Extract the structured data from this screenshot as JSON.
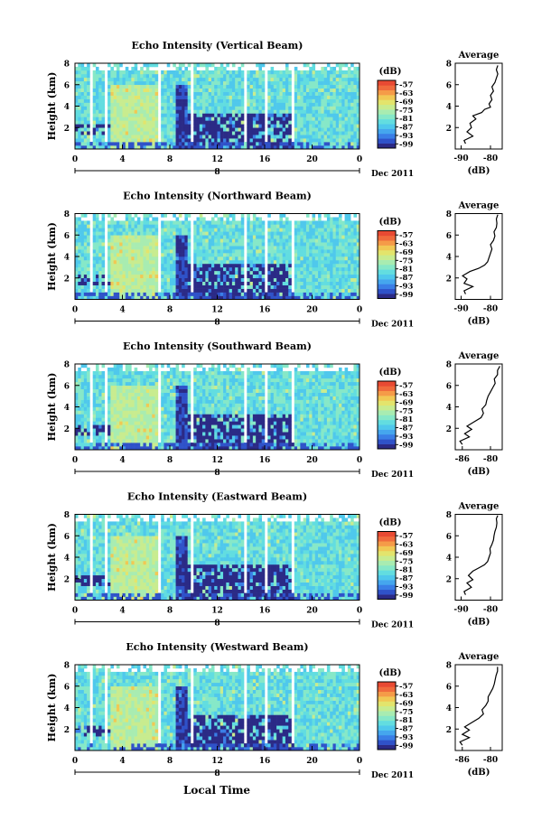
{
  "chart_data": {
    "type": "heatmap",
    "common": {
      "xlabel": "Local Time",
      "date_label": "Dec 2011",
      "day_label": "8",
      "x_ticks": [
        "0",
        "4",
        "8",
        "12",
        "16",
        "20",
        "0"
      ],
      "y_ticks": [
        "2",
        "4",
        "6",
        "8"
      ],
      "ylabel": "Height (km)",
      "xlim": [
        0,
        24
      ],
      "ylim": [
        0,
        8
      ],
      "colorbar": {
        "unit": "(dB)",
        "ticks": [
          "-57",
          "-63",
          "-69",
          "-75",
          "-81",
          "-87",
          "-93",
          "-99"
        ],
        "range": [
          -102,
          -54
        ],
        "colors": [
          "#2b2a86",
          "#2f52c9",
          "#3a7ee6",
          "#45a6ee",
          "#4fc8ec",
          "#62dde0",
          "#86e8c8",
          "#a8ecb1",
          "#c8ec8f",
          "#e3e46c",
          "#f1c854",
          "#f59b48",
          "#f06b3d",
          "#e84a33"
        ]
      },
      "avg_title": "Average",
      "avg_xlabel": "(dB)",
      "avg_y_ticks": [
        "2",
        "4",
        "6",
        "8"
      ],
      "avg_ylim": [
        0,
        8
      ]
    },
    "panels": [
      {
        "title": "Echo Intensity (Vertical Beam)",
        "avg_xticks": [
          "-90",
          "-80"
        ],
        "avg_xlim": [
          -92,
          -76
        ],
        "avg_profile": [
          [
            -88.5,
            0.5
          ],
          [
            -89,
            0.8
          ],
          [
            -86,
            1.2
          ],
          [
            -88,
            1.6
          ],
          [
            -86.5,
            2.0
          ],
          [
            -87,
            2.4
          ],
          [
            -85,
            2.8
          ],
          [
            -86,
            3.1
          ],
          [
            -83,
            3.4
          ],
          [
            -82,
            3.7
          ],
          [
            -80,
            3.9
          ],
          [
            -80.5,
            4.2
          ],
          [
            -79.5,
            4.6
          ],
          [
            -80,
            5.0
          ],
          [
            -79,
            5.4
          ],
          [
            -79.5,
            5.8
          ],
          [
            -78.5,
            6.2
          ],
          [
            -78,
            6.6
          ],
          [
            -77.5,
            7.0
          ],
          [
            -78,
            7.4
          ],
          [
            -77.5,
            7.8
          ]
        ]
      },
      {
        "title": "Echo Intensity (Northward Beam)",
        "avg_xticks": [
          "-90",
          "-80"
        ],
        "avg_xlim": [
          -92,
          -76
        ],
        "avg_profile": [
          [
            -88.5,
            0.5
          ],
          [
            -89,
            0.8
          ],
          [
            -86,
            1.2
          ],
          [
            -89,
            1.5
          ],
          [
            -88,
            1.9
          ],
          [
            -89.5,
            2.2
          ],
          [
            -87,
            2.6
          ],
          [
            -84,
            2.9
          ],
          [
            -82,
            3.2
          ],
          [
            -81,
            3.5
          ],
          [
            -80.5,
            3.9
          ],
          [
            -80,
            4.3
          ],
          [
            -79.5,
            4.7
          ],
          [
            -80,
            5.1
          ],
          [
            -79,
            5.5
          ],
          [
            -78.5,
            5.9
          ],
          [
            -78.8,
            6.3
          ],
          [
            -78,
            6.7
          ],
          [
            -77.8,
            7.1
          ],
          [
            -78,
            7.5
          ],
          [
            -77.5,
            7.9
          ]
        ]
      },
      {
        "title": "Echo Intensity (Southward Beam)",
        "avg_xticks": [
          "-86",
          "-80"
        ],
        "avg_xlim": [
          -87.5,
          -77.5
        ],
        "avg_profile": [
          [
            -86,
            0.5
          ],
          [
            -86.5,
            0.8
          ],
          [
            -84.5,
            1.2
          ],
          [
            -85.5,
            1.5
          ],
          [
            -84,
            1.9
          ],
          [
            -85,
            2.2
          ],
          [
            -83.5,
            2.6
          ],
          [
            -82,
            3.0
          ],
          [
            -81.5,
            3.4
          ],
          [
            -81.8,
            3.8
          ],
          [
            -81,
            4.2
          ],
          [
            -80.8,
            4.6
          ],
          [
            -80.5,
            5.0
          ],
          [
            -80,
            5.4
          ],
          [
            -79.5,
            5.8
          ],
          [
            -79,
            6.2
          ],
          [
            -79.2,
            6.6
          ],
          [
            -78.5,
            7.0
          ],
          [
            -78.5,
            7.4
          ],
          [
            -78,
            7.8
          ]
        ]
      },
      {
        "title": "Echo Intensity (Eastward Beam)",
        "avg_xticks": [
          "-90",
          "-80"
        ],
        "avg_xlim": [
          -92,
          -76
        ],
        "avg_profile": [
          [
            -88.5,
            0.5
          ],
          [
            -89,
            0.8
          ],
          [
            -86.5,
            1.2
          ],
          [
            -88,
            1.6
          ],
          [
            -86,
            1.9
          ],
          [
            -87.5,
            2.3
          ],
          [
            -86,
            2.7
          ],
          [
            -84,
            3.0
          ],
          [
            -82,
            3.3
          ],
          [
            -81,
            3.6
          ],
          [
            -80.5,
            4.0
          ],
          [
            -80,
            4.4
          ],
          [
            -80.2,
            4.8
          ],
          [
            -79.5,
            5.2
          ],
          [
            -79,
            5.6
          ],
          [
            -78.8,
            6.0
          ],
          [
            -78.5,
            6.4
          ],
          [
            -78,
            6.8
          ],
          [
            -77.8,
            7.2
          ],
          [
            -78,
            7.6
          ],
          [
            -77.5,
            7.9
          ]
        ]
      },
      {
        "title": "Echo Intensity (Westward Beam)",
        "avg_xticks": [
          "-86",
          "-80"
        ],
        "avg_xlim": [
          -87.5,
          -77.5
        ],
        "avg_profile": [
          [
            -86,
            0.5
          ],
          [
            -86.5,
            0.8
          ],
          [
            -84.5,
            1.2
          ],
          [
            -86,
            1.5
          ],
          [
            -84.5,
            1.9
          ],
          [
            -85.5,
            2.2
          ],
          [
            -84,
            2.6
          ],
          [
            -82.5,
            3.0
          ],
          [
            -81.5,
            3.4
          ],
          [
            -81.8,
            3.8
          ],
          [
            -81,
            4.2
          ],
          [
            -80.5,
            4.6
          ],
          [
            -80.5,
            5.0
          ],
          [
            -80,
            5.4
          ],
          [
            -79.5,
            5.8
          ],
          [
            -79.2,
            6.2
          ],
          [
            -79,
            6.6
          ],
          [
            -78.8,
            7.0
          ],
          [
            -78.5,
            7.4
          ],
          [
            -78.5,
            7.8
          ]
        ]
      }
    ]
  }
}
